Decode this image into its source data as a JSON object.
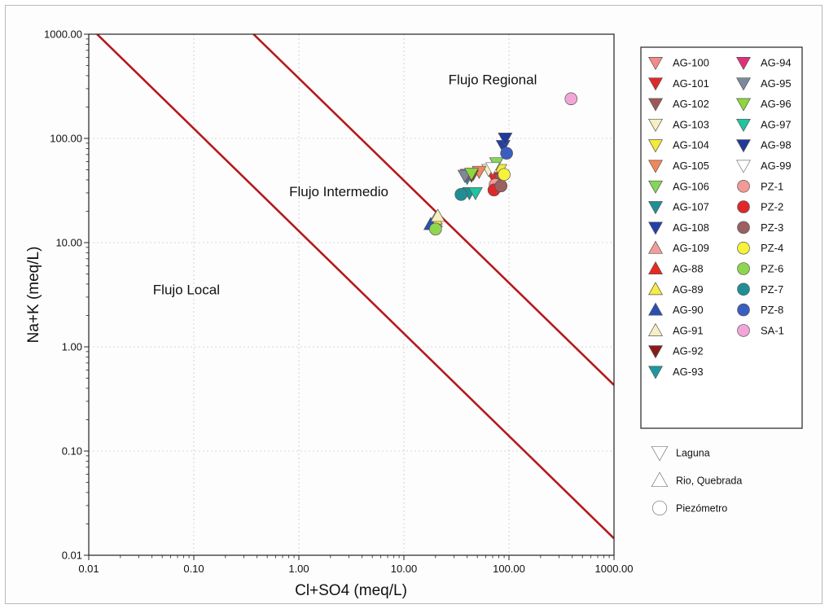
{
  "chart_data": {
    "type": "scatter",
    "xlabel": "Cl+SO4 (meq/L)",
    "ylabel": "Na+K (meq/L)",
    "xscale": "log",
    "yscale": "log",
    "xlim": [
      0.01,
      1000
    ],
    "ylim": [
      0.01,
      1000
    ],
    "x_ticks": [
      "0.01",
      "0.10",
      "1.00",
      "10.00",
      "100.00",
      "1000.00"
    ],
    "y_ticks": [
      "0.01",
      "0.10",
      "1.00",
      "10.00",
      "100.00",
      "1000.00"
    ],
    "grid": true,
    "legend_position": "right",
    "annotations": [
      {
        "text": "Flujo Regional",
        "x": 70,
        "y": 330
      },
      {
        "text": "Flujo Intermedio",
        "x": 2.4,
        "y": 28
      },
      {
        "text": "Flujo Local",
        "x": 0.085,
        "y": 3.2
      }
    ],
    "lines": [
      {
        "name": "",
        "color": "#b5191d",
        "points": [
          [
            0.012,
            1000
          ],
          [
            1000,
            0.0145
          ]
        ]
      },
      {
        "name": "",
        "color": "#b5191d",
        "points": [
          [
            0.37,
            1000
          ],
          [
            1000,
            0.43
          ]
        ]
      }
    ],
    "series": [
      {
        "name": "AG-100",
        "marker": "down",
        "color": "#f28b8b",
        "points": [
          [
            46,
            46
          ]
        ]
      },
      {
        "name": "AG-101",
        "marker": "down",
        "color": "#e0282a",
        "points": [
          [
            72,
            42
          ]
        ]
      },
      {
        "name": "AG-102",
        "marker": "down",
        "color": "#9b5a58",
        "points": [
          [
            85,
            40
          ]
        ]
      },
      {
        "name": "AG-103",
        "marker": "down",
        "color": "#f7efc4",
        "points": [
          [
            64,
            50
          ]
        ]
      },
      {
        "name": "AG-104",
        "marker": "down",
        "color": "#f5e93a",
        "points": [
          [
            82,
            50
          ]
        ]
      },
      {
        "name": "AG-105",
        "marker": "down",
        "color": "#f2875a",
        "points": [
          [
            52,
            48
          ]
        ]
      },
      {
        "name": "AG-106",
        "marker": "down",
        "color": "#86d659",
        "points": [
          [
            76,
            58
          ]
        ]
      },
      {
        "name": "AG-107",
        "marker": "down",
        "color": "#1f8f96",
        "points": [
          [
            42,
            30
          ]
        ]
      },
      {
        "name": "AG-108",
        "marker": "down",
        "color": "#2340a6",
        "points": [
          [
            88,
            85
          ]
        ]
      },
      {
        "name": "AG-109",
        "marker": "up",
        "color": "#f29c9a",
        "points": [
          [
            20,
            16
          ]
        ]
      },
      {
        "name": "AG-88",
        "marker": "up",
        "color": "#e82a1e",
        "points": [
          [
            19,
            15
          ]
        ]
      },
      {
        "name": "AG-89",
        "marker": "up",
        "color": "#f5ec45",
        "points": [
          [
            20,
            17
          ]
        ]
      },
      {
        "name": "AG-90",
        "marker": "up",
        "color": "#2a4fb0",
        "points": [
          [
            18,
            15
          ]
        ]
      },
      {
        "name": "AG-91",
        "marker": "up",
        "color": "#f7efc4",
        "points": [
          [
            21,
            18
          ]
        ]
      },
      {
        "name": "AG-92",
        "marker": "down",
        "color": "#8a1a1a",
        "points": [
          [
            44,
            44
          ]
        ]
      },
      {
        "name": "AG-93",
        "marker": "down",
        "color": "#1a9aa0",
        "points": [
          [
            40,
            42
          ]
        ]
      },
      {
        "name": "AG-94",
        "marker": "down",
        "color": "#e0307a",
        "points": [
          [
            40,
            45
          ]
        ]
      },
      {
        "name": "AG-95",
        "marker": "down",
        "color": "#7a8a9a",
        "points": [
          [
            38,
            44
          ]
        ]
      },
      {
        "name": "AG-96",
        "marker": "down",
        "color": "#8ed63a",
        "points": [
          [
            44,
            46
          ]
        ]
      },
      {
        "name": "AG-97",
        "marker": "down",
        "color": "#20c4a0",
        "points": [
          [
            48,
            30
          ]
        ]
      },
      {
        "name": "AG-98",
        "marker": "down",
        "color": "#203a9a",
        "points": [
          [
            92,
            100
          ]
        ]
      },
      {
        "name": "AG-99",
        "marker": "down",
        "color": "#ffffff",
        "points": [
          [
            70,
            52
          ]
        ]
      },
      {
        "name": "PZ-1",
        "marker": "circle",
        "color": "#f29a96",
        "points": [
          [
            74,
            36
          ]
        ]
      },
      {
        "name": "PZ-2",
        "marker": "circle",
        "color": "#e0282a",
        "points": [
          [
            72,
            32
          ]
        ]
      },
      {
        "name": "PZ-3",
        "marker": "circle",
        "color": "#9b6060",
        "points": [
          [
            84,
            35
          ]
        ]
      },
      {
        "name": "PZ-4",
        "marker": "circle",
        "color": "#f7f23a",
        "points": [
          [
            90,
            45
          ]
        ]
      },
      {
        "name": "PZ-6",
        "marker": "circle",
        "color": "#8fd650",
        "points": [
          [
            20,
            13.5
          ]
        ]
      },
      {
        "name": "PZ-7",
        "marker": "circle",
        "color": "#1f8f96",
        "points": [
          [
            35,
            29
          ]
        ]
      },
      {
        "name": "PZ-8",
        "marker": "circle",
        "color": "#3a5ec0",
        "points": [
          [
            95,
            72
          ]
        ]
      },
      {
        "name": "SA-1",
        "marker": "circle",
        "color": "#f2a6d8",
        "points": [
          [
            390,
            240
          ]
        ]
      }
    ],
    "symbol_key": [
      {
        "marker": "down",
        "label": "Laguna"
      },
      {
        "marker": "up",
        "label": "Rio, Quebrada"
      },
      {
        "marker": "circle",
        "label": "Piezómetro"
      }
    ]
  }
}
